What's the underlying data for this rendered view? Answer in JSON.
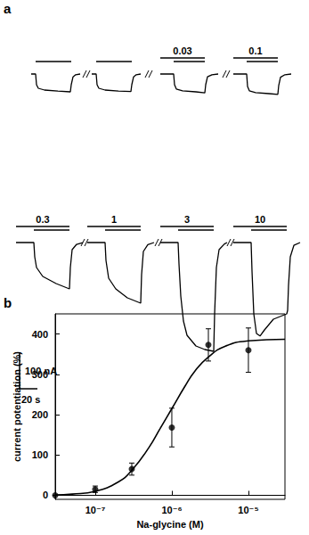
{
  "chart_data": [
    {
      "panel": "a",
      "type": "line",
      "xlim": [
        0,
        75
      ],
      "ylim": [
        -320,
        20
      ],
      "tick_labels": false,
      "color": "#000000",
      "traces": [
        {
          "x": [
            0,
            5,
            6,
            8,
            15,
            30,
            44,
            45,
            47,
            50,
            55
          ],
          "values": [
            0,
            0,
            -30,
            -40,
            -45,
            -48,
            -50,
            -30,
            -8,
            -2,
            0
          ],
          "application": [
            5,
            45
          ]
        },
        {
          "x": [
            0,
            5,
            6,
            8,
            15,
            30,
            44,
            45,
            47,
            50,
            55
          ],
          "values": [
            0,
            0,
            -30,
            -40,
            -45,
            -48,
            -49,
            -30,
            -8,
            -2,
            0
          ],
          "application": [
            5,
            45
          ]
        },
        {
          "label": "0.03",
          "x": [
            0,
            15,
            16,
            18,
            25,
            40,
            50,
            51,
            53,
            58,
            65
          ],
          "values": [
            0,
            0,
            -30,
            -42,
            -47,
            -50,
            -53,
            -30,
            -8,
            -2,
            0
          ],
          "application": [
            15,
            50
          ],
          "coapplication": [
            0,
            50
          ]
        },
        {
          "label": "0.1",
          "x": [
            0,
            15,
            16,
            18,
            25,
            40,
            50,
            51,
            53,
            58,
            65
          ],
          "values": [
            0,
            0,
            -35,
            -47,
            -52,
            -55,
            -57,
            -32,
            -9,
            -2,
            0
          ],
          "application": [
            15,
            50
          ],
          "coapplication": [
            0,
            50
          ]
        },
        {
          "label": "0.3",
          "x": [
            0,
            20,
            21,
            23,
            30,
            45,
            60,
            61,
            63,
            68,
            75
          ],
          "values": [
            0,
            0,
            -40,
            -70,
            -95,
            -115,
            -130,
            -70,
            -20,
            -5,
            0
          ],
          "application": [
            20,
            60
          ],
          "coapplication": [
            0,
            60
          ]
        },
        {
          "label": "1",
          "x": [
            0,
            20,
            21,
            24,
            32,
            45,
            60,
            61,
            63,
            68,
            75
          ],
          "values": [
            0,
            0,
            -50,
            -100,
            -130,
            -155,
            -170,
            -90,
            -25,
            -6,
            0
          ],
          "application": [
            20,
            60
          ],
          "coapplication": [
            0,
            60
          ]
        },
        {
          "label": "3",
          "x": [
            0,
            20,
            21,
            23,
            26,
            30,
            40,
            50,
            60,
            61,
            63,
            66,
            72,
            75
          ],
          "values": [
            0,
            0,
            -60,
            -150,
            -220,
            -260,
            -290,
            -300,
            -305,
            -200,
            -70,
            -20,
            -4,
            0
          ],
          "application": [
            20,
            60
          ],
          "coapplication": [
            0,
            60
          ]
        },
        {
          "label": "10",
          "x": [
            0,
            20,
            21,
            23,
            26,
            30,
            35,
            45,
            55,
            60,
            61,
            62,
            64,
            68,
            75
          ],
          "values": [
            0,
            0,
            -80,
            -200,
            -255,
            -262,
            -245,
            -215,
            -205,
            -200,
            -190,
            -120,
            -40,
            -8,
            0
          ],
          "application": [
            20,
            60
          ],
          "coapplication": [
            0,
            60
          ]
        }
      ],
      "scale_bar": {
        "x": 20,
        "x_label": "20 s",
        "y": 100,
        "y_label": "100 nA"
      }
    },
    {
      "panel": "b",
      "type": "scatter",
      "x_label": "Na-glycine (M)",
      "y_label": "current potentiation (%)",
      "log": "x",
      "grid": false,
      "color": "#000000",
      "marker": "circle",
      "x": [
        3e-08,
        1e-07,
        3e-07,
        1e-06,
        3e-06,
        1e-05
      ],
      "values": [
        0,
        15,
        65,
        168,
        373,
        360
      ],
      "errors": [
        0,
        8,
        15,
        48,
        40,
        55
      ],
      "fit": {
        "x": [
          3e-08,
          5e-08,
          1e-07,
          2e-07,
          3e-07,
          5e-07,
          7e-07,
          1e-06,
          1.5e-06,
          2e-06,
          3e-06,
          5e-06,
          1e-05,
          3e-05
        ],
        "values": [
          1,
          3,
          10,
          33,
          62,
          118,
          165,
          215,
          272,
          308,
          343,
          370,
          383,
          387
        ]
      },
      "xlim": [
        3e-08,
        3e-05
      ],
      "xticks": [
        {
          "value": 1e-07,
          "label": "10⁻⁷"
        },
        {
          "value": 1e-06,
          "label": "10⁻⁶"
        },
        {
          "value": 1e-05,
          "label": "10⁻⁵"
        }
      ],
      "ylim": [
        -10,
        450
      ],
      "yticks": [
        0,
        100,
        200,
        300,
        400
      ]
    }
  ]
}
